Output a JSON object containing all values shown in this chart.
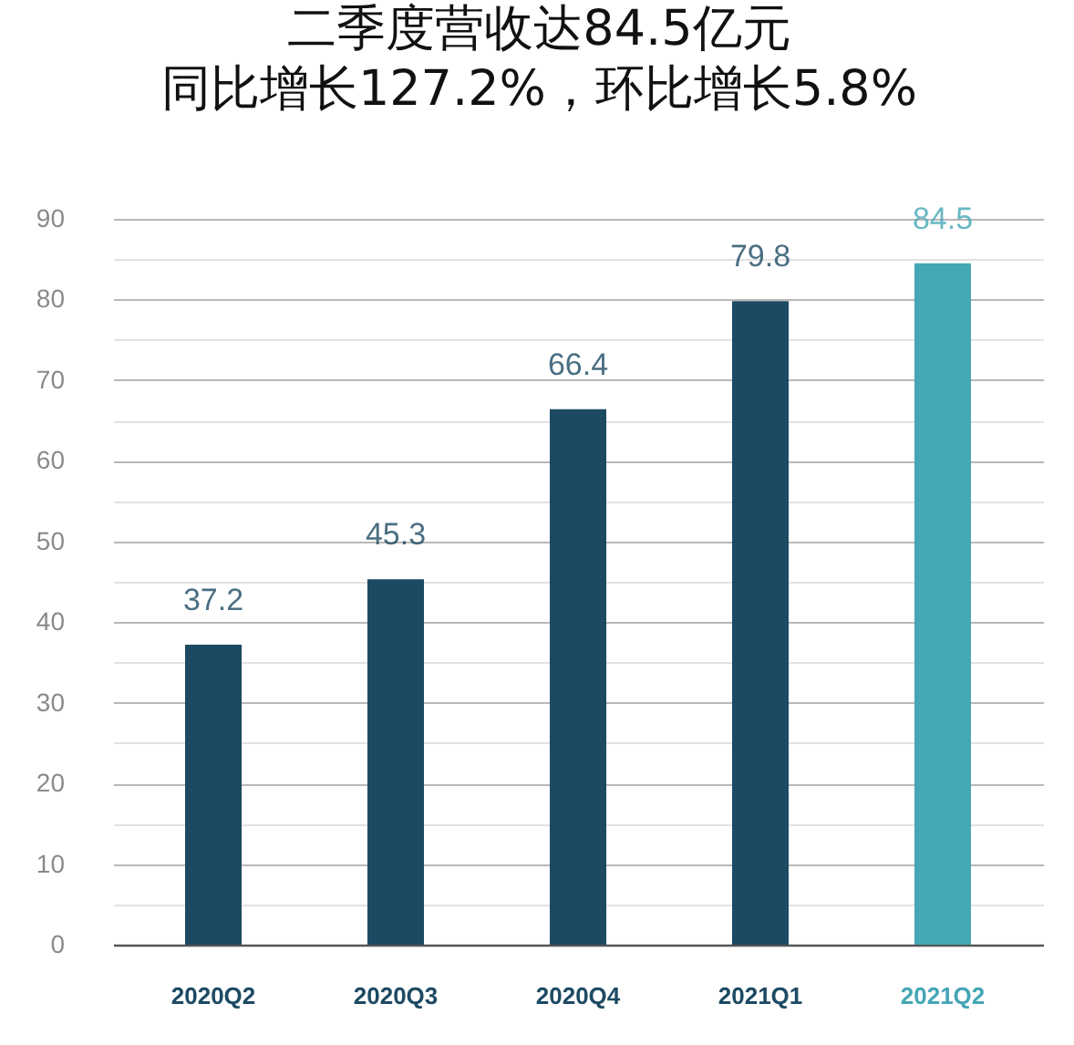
{
  "chart_data": {
    "type": "bar",
    "title": "二季度营收达84.5亿元",
    "subtitle": "同比增长127.2%，环比增长5.8%",
    "categories": [
      "2020Q2",
      "2020Q3",
      "2020Q4",
      "2021Q1",
      "2021Q2"
    ],
    "values": [
      37.2,
      45.3,
      66.4,
      79.8,
      84.5
    ],
    "colors": [
      "#1d4a63",
      "#1d4a63",
      "#1d4a63",
      "#1d4a63",
      "#45a6b6"
    ],
    "ylim": [
      0,
      90
    ],
    "yticks": [
      0,
      {
        "value": 5,
        "label": null
      },
      10,
      {
        "value": 15,
        "label": null
      },
      20,
      {
        "value": 25,
        "label": null
      },
      30,
      {
        "value": 35,
        "label": null
      },
      40,
      {
        "value": 45,
        "label": null
      },
      50,
      {
        "value": 55,
        "label": null
      },
      60,
      {
        "value": 65,
        "label": null
      },
      70,
      {
        "value": 75,
        "label": null
      },
      80,
      {
        "value": 85,
        "label": null
      },
      90
    ],
    "grid": "y",
    "data_labels": true
  }
}
